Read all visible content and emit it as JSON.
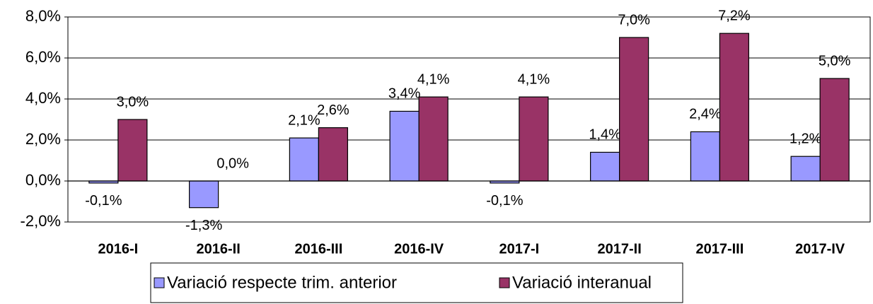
{
  "chart_data": {
    "type": "bar",
    "categories": [
      "2016-I",
      "2016-II",
      "2016-III",
      "2016-IV",
      "2017-I",
      "2017-II",
      "2017-III",
      "2017-IV"
    ],
    "series": [
      {
        "name": "Variació respecte trim. anterior",
        "color": "#9999ff",
        "values": [
          -0.1,
          -1.3,
          2.1,
          3.4,
          -0.1,
          1.4,
          2.4,
          1.2
        ],
        "value_labels": [
          "-0,1%",
          "-1,3%",
          "2,1%",
          "3,4%",
          "-0,1%",
          "1,4%",
          "2,4%",
          "1,2%"
        ]
      },
      {
        "name": "Variació interanual",
        "color": "#993366",
        "values": [
          3.0,
          0.0,
          2.6,
          4.1,
          4.1,
          7.0,
          7.2,
          5.0
        ],
        "value_labels": [
          "3,0%",
          "0,0%",
          "2,6%",
          "4,1%",
          "4,1%",
          "7,0%",
          "7,2%",
          "5,0%"
        ]
      }
    ],
    "ylim": [
      -2,
      8
    ],
    "yticks": [
      {
        "value": -2,
        "label": "-2,0%"
      },
      {
        "value": 0,
        "label": "0,0%"
      },
      {
        "value": 2,
        "label": "2,0%"
      },
      {
        "value": 4,
        "label": "4,0%"
      },
      {
        "value": 6,
        "label": "6,0%"
      },
      {
        "value": 8,
        "label": "8,0%"
      }
    ],
    "grid": true,
    "legend": "bottom"
  }
}
